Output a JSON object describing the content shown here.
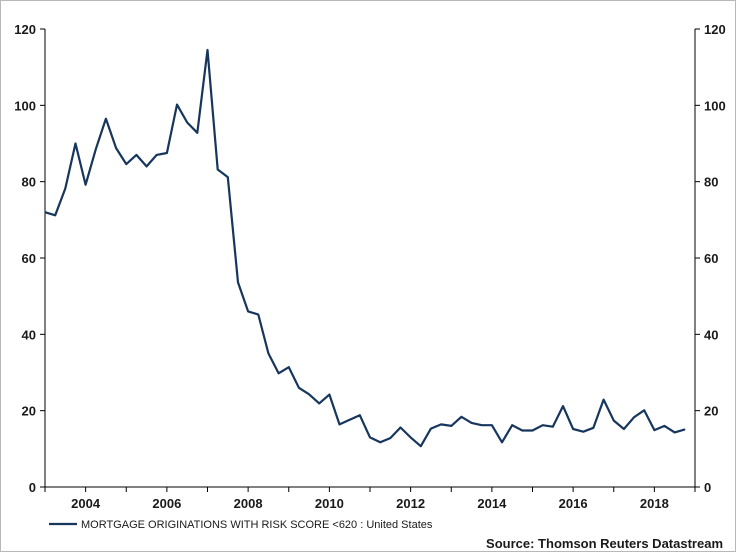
{
  "chart_data": {
    "type": "line",
    "title": "",
    "xlabel": "",
    "ylabel": "",
    "xlim": [
      2003.0,
      2019.0
    ],
    "ylim": [
      0,
      120
    ],
    "y_ticks": [
      0,
      20,
      40,
      60,
      80,
      100,
      120
    ],
    "x_tick_years": [
      2004,
      2006,
      2008,
      2010,
      2012,
      2014,
      2016,
      2018
    ],
    "x_tick_labels": [
      "2004",
      "2006",
      "2008",
      "2010",
      "2012",
      "2014",
      "2016",
      "2018"
    ],
    "y_tick_labels": [
      "0",
      "20",
      "40",
      "60",
      "80",
      "100",
      "120"
    ],
    "grid": false,
    "series": [
      {
        "name": "MORTGAGE ORIGINATIONS WITH RISK SCORE <620 : United States",
        "color": "#17365d",
        "x": [
          2003.0,
          2003.25,
          2003.5,
          2003.75,
          2004.0,
          2004.25,
          2004.5,
          2004.75,
          2005.0,
          2005.25,
          2005.5,
          2005.75,
          2006.0,
          2006.25,
          2006.5,
          2006.75,
          2007.0,
          2007.25,
          2007.5,
          2007.75,
          2008.0,
          2008.25,
          2008.5,
          2008.75,
          2009.0,
          2009.25,
          2009.5,
          2009.75,
          2010.0,
          2010.25,
          2010.5,
          2010.75,
          2011.0,
          2011.25,
          2011.5,
          2011.75,
          2012.0,
          2012.25,
          2012.5,
          2012.75,
          2013.0,
          2013.25,
          2013.5,
          2013.75,
          2014.0,
          2014.25,
          2014.5,
          2014.75,
          2015.0,
          2015.25,
          2015.5,
          2015.75,
          2016.0,
          2016.25,
          2016.5,
          2016.75,
          2017.0,
          2017.25,
          2017.5,
          2017.75,
          2018.0,
          2018.25,
          2018.5,
          2018.75
        ],
        "values": [
          72,
          71.2,
          78.2,
          90,
          79.2,
          88.5,
          96.5,
          88.8,
          84.6,
          87,
          84,
          87,
          87.5,
          100.2,
          95.5,
          92.8,
          114.5,
          83.2,
          81.2,
          53.6,
          46,
          45.2,
          35,
          29.8,
          31.4,
          26,
          24.3,
          21.9,
          24.2,
          16.4,
          17.6,
          18.8,
          13,
          11.7,
          12.8,
          15.6,
          13,
          10.7,
          15.3,
          16.4,
          16,
          18.4,
          16.8,
          16.2,
          16.2,
          11.7,
          16.2,
          14.8,
          14.8,
          16.2,
          15.8,
          21.2,
          15.2,
          14.5,
          15.5,
          22.9,
          17.4,
          15.2,
          18.3,
          20.1,
          14.9,
          16,
          14.3,
          15.1
        ]
      }
    ],
    "legend": "bottom-left",
    "source": "Source: Thomson Reuters Datastream"
  }
}
